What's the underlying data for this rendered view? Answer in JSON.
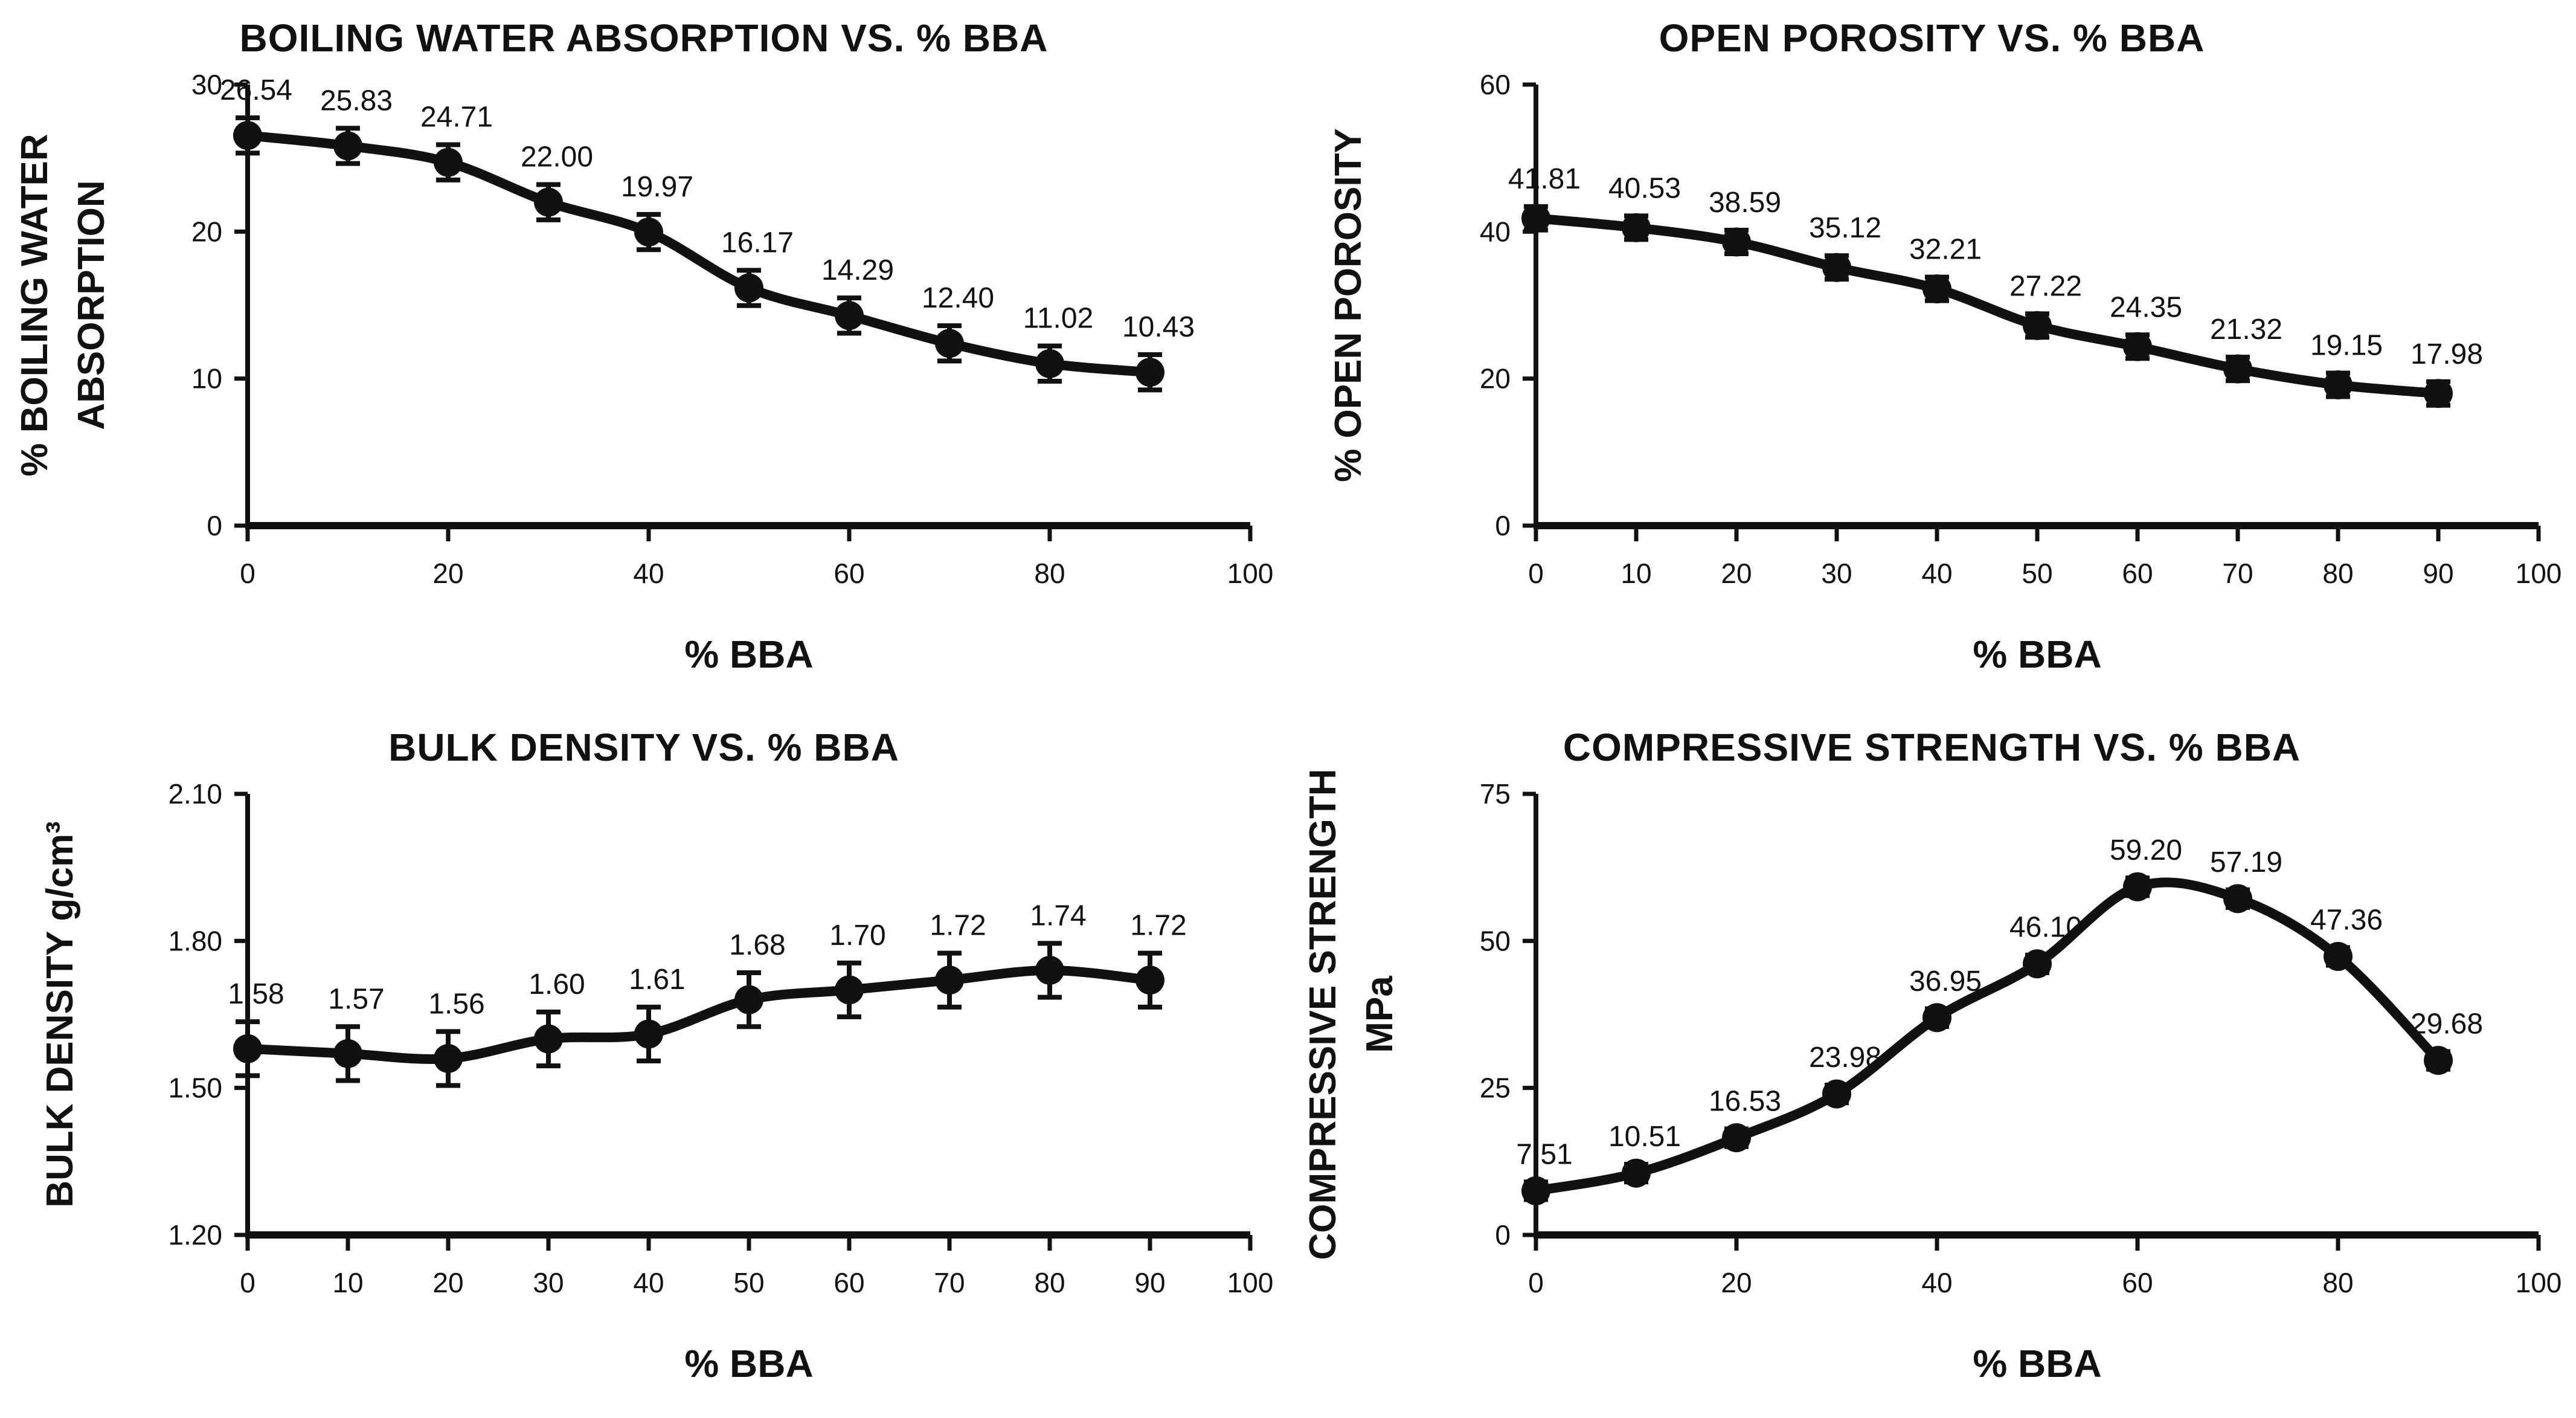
{
  "figure": {
    "background": "#ffffff",
    "line_color": "#111111",
    "marker_color": "#111111",
    "text_color": "#111111"
  },
  "chart_data": [
    {
      "type": "line",
      "title": "BOILING WATER ABSORPTION VS. % BBA",
      "xlabel": "% BBA",
      "ylabel_lines": [
        "% BOILING WATER",
        "ABSORPTION"
      ],
      "x": [
        0,
        10,
        20,
        30,
        40,
        50,
        60,
        70,
        80,
        90
      ],
      "values": [
        26.54,
        25.83,
        24.71,
        22.0,
        19.97,
        16.17,
        14.29,
        12.4,
        11.02,
        10.43
      ],
      "error_approx": 1.2,
      "xlim": [
        0,
        100
      ],
      "ylim": [
        0,
        30
      ],
      "xticks": [
        0,
        20,
        40,
        60,
        80,
        100
      ],
      "yticks": [
        0,
        10,
        20,
        30
      ],
      "ytick_decimals": 0,
      "label_decimals": 2,
      "grid": false,
      "legend": "none"
    },
    {
      "type": "line",
      "title": "OPEN POROSITY VS. % BBA",
      "xlabel": "% BBA",
      "ylabel_lines": [
        "% OPEN POROSITY"
      ],
      "x": [
        0,
        10,
        20,
        30,
        40,
        50,
        60,
        70,
        80,
        90
      ],
      "values": [
        41.81,
        40.53,
        38.59,
        35.12,
        32.21,
        27.22,
        24.35,
        21.32,
        19.15,
        17.98
      ],
      "error_approx": 1.6,
      "xlim": [
        0,
        100
      ],
      "ylim": [
        0,
        60
      ],
      "xticks": [
        0,
        10,
        20,
        30,
        40,
        50,
        60,
        70,
        80,
        90,
        100
      ],
      "yticks": [
        0,
        20,
        40,
        60
      ],
      "ytick_decimals": 0,
      "label_decimals": 2,
      "grid": false,
      "legend": "none"
    },
    {
      "type": "line",
      "title": "BULK DENSITY VS. % BBA",
      "xlabel": "% BBA",
      "ylabel_lines": [
        "BULK DENSITY  g/cm³"
      ],
      "x": [
        0,
        10,
        20,
        30,
        40,
        50,
        60,
        70,
        80,
        90
      ],
      "values": [
        1.58,
        1.57,
        1.56,
        1.6,
        1.61,
        1.68,
        1.7,
        1.72,
        1.74,
        1.72
      ],
      "error_approx": 0.055,
      "xlim": [
        0,
        100
      ],
      "ylim": [
        1.2,
        2.1
      ],
      "xticks": [
        0,
        10,
        20,
        30,
        40,
        50,
        60,
        70,
        80,
        90,
        100
      ],
      "yticks": [
        1.2,
        1.5,
        1.8,
        2.1
      ],
      "ytick_decimals": 2,
      "label_decimals": 2,
      "grid": false,
      "legend": "none"
    },
    {
      "type": "line",
      "title": "COMPRESSIVE STRENGTH VS. % BBA",
      "xlabel": "% BBA",
      "ylabel_lines": [
        "COMPRESSIVE STRENGTH",
        "MPa"
      ],
      "x": [
        0,
        10,
        20,
        30,
        40,
        50,
        60,
        70,
        80,
        90
      ],
      "values": [
        7.51,
        10.51,
        16.53,
        23.98,
        36.95,
        46.1,
        59.2,
        57.19,
        47.36,
        29.68
      ],
      "error_approx": 1.5,
      "xlim": [
        0,
        100
      ],
      "ylim": [
        0,
        75
      ],
      "xticks": [
        0,
        20,
        40,
        60,
        80,
        100
      ],
      "yticks": [
        0,
        25,
        50,
        75
      ],
      "ytick_decimals": 0,
      "label_decimals": 2,
      "grid": false,
      "legend": "none"
    }
  ]
}
